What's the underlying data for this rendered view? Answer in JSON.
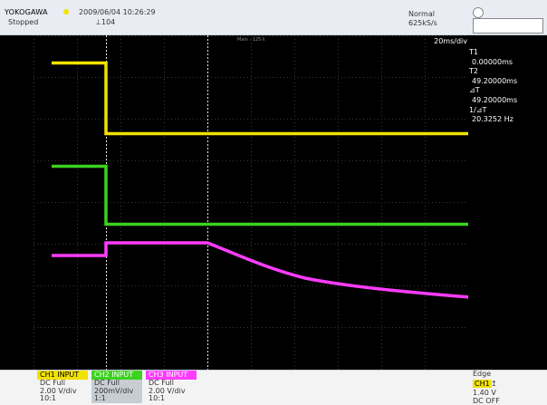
{
  "top": {
    "brand": "YOKOGAWA",
    "datetime": "2009/06/04 10:26:29",
    "status": "Stopped",
    "record": "104",
    "mode": "Normal",
    "sample_rate": "625kS/s"
  },
  "screen": {
    "main_label": "Main : 125 k",
    "timebase": "20ms/div"
  },
  "cursor_panel": {
    "t1_label": "T1",
    "t1_value": "0.00000ms",
    "t2_label": "T2",
    "t2_value": "49.20000ms",
    "dt_label": "⊿T",
    "dt_value": "49.20000ms",
    "inv_label": "1/⊿T",
    "inv_value": "20.3252 Hz"
  },
  "channels": [
    {
      "header": "CH1 INPUT",
      "coupling": "DC Full",
      "scale": "2.00 V/div",
      "probe": "10:1",
      "color": "#f2e200"
    },
    {
      "header": "CH2 INPUT",
      "coupling": "DC Full",
      "scale": "200mV/div",
      "probe": "1:1",
      "color": "#3cd21e"
    },
    {
      "header": "CH3 INPUT",
      "coupling": "DC Full",
      "scale": "2.00 V/div",
      "probe": "10:1",
      "color": "#ff3cff"
    }
  ],
  "trigger": {
    "type": "Edge",
    "source": "CH1",
    "level": "1.40 V",
    "coupling": "DC OFF"
  },
  "colors": {
    "ch1": "#f2e200",
    "ch2": "#3cd21e",
    "ch3": "#ff3cff",
    "screen_bg": "#000000"
  },
  "icons": {
    "status": "status-dot-icon",
    "trigger": "trigger-edge-icon",
    "knob": "knob-icon"
  }
}
